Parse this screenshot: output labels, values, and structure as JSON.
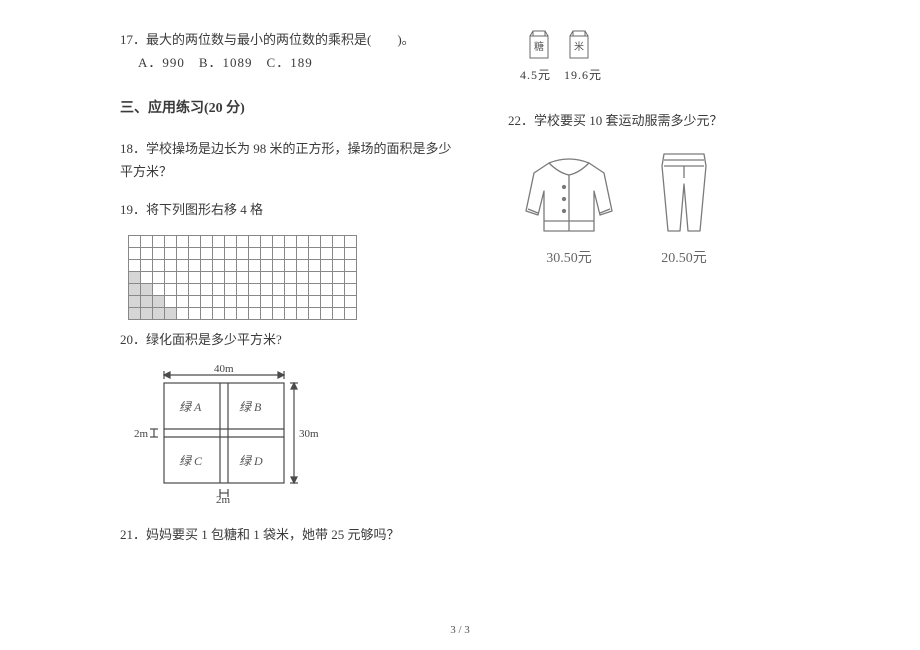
{
  "left": {
    "q17": {
      "num": "17．",
      "text": "最大的两位数与最小的两位数的乘积是(　　)。",
      "choices": "A．990　B．1089　C．189"
    },
    "section_title": "三、应用练习(20 分)",
    "q18": {
      "num": "18．",
      "text": "学校操场是边长为 98 米的正方形，操场的面积是多少平方米？"
    },
    "q19": {
      "num": "19．",
      "text": "将下列图形右移 4 格"
    },
    "q20": {
      "num": "20．",
      "text": "绿化面积是多少平方米?"
    },
    "q21": {
      "num": "21．",
      "text": "妈妈要买 1 包糖和 1 袋米，她带 25 元够吗？"
    },
    "green_fig": {
      "w_label": "40m",
      "h_label": "30m",
      "gap_v": "2m",
      "gap_h": "2m",
      "boxes": [
        "绿 A",
        "绿 B",
        "绿 C",
        "绿 D"
      ]
    }
  },
  "right": {
    "bags": {
      "left_char": "糖",
      "right_char": "米",
      "price_left": "4.5元",
      "price_right": "19.6元"
    },
    "q22": {
      "num": "22．",
      "text": "学校要买 10 套运动服需多少元？"
    },
    "jacket_price": "30.50元",
    "pants_price": "20.50元"
  },
  "pagenum": "3 / 3",
  "style": {
    "text_color": "#3a3a3a",
    "grid_border": "#888888",
    "shade_fill": "#d6d6d6",
    "lineart": "#6a6a6a",
    "label_gray": "#666666"
  }
}
